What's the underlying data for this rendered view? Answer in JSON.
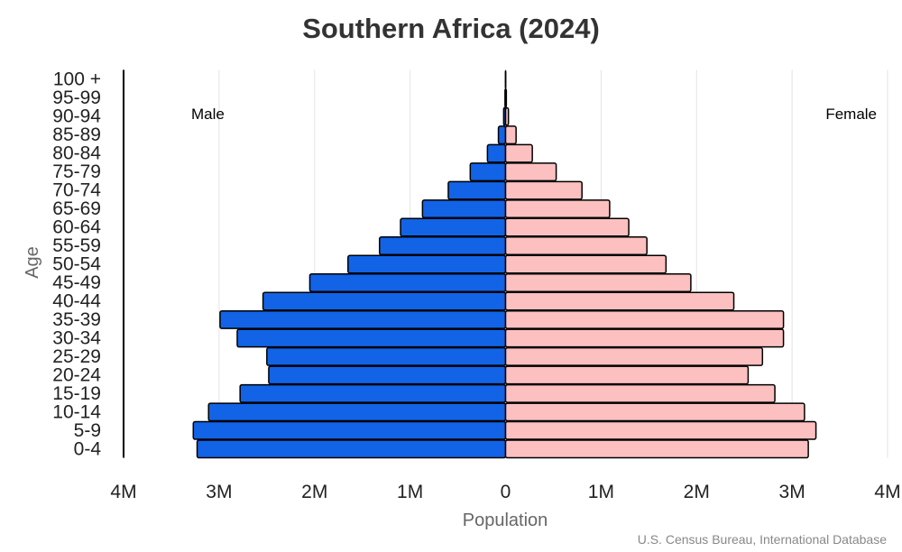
{
  "chart_data": {
    "type": "bar",
    "orientation": "horizontal",
    "subtype": "population-pyramid",
    "title": "Southern Africa (2024)",
    "xlabel": "Population",
    "ylabel": "Age",
    "source": "U.S. Census Bureau, International Database",
    "xlim": [
      -4000000,
      4000000
    ],
    "x_ticks": [
      {
        "value": -4000000,
        "label": "4M"
      },
      {
        "value": -3000000,
        "label": "3M"
      },
      {
        "value": -2000000,
        "label": "2M"
      },
      {
        "value": -1000000,
        "label": "1M"
      },
      {
        "value": 0,
        "label": "0"
      },
      {
        "value": 1000000,
        "label": "1M"
      },
      {
        "value": 2000000,
        "label": "2M"
      },
      {
        "value": 3000000,
        "label": "3M"
      },
      {
        "value": 4000000,
        "label": "4M"
      }
    ],
    "grid": "vertical",
    "categories": [
      "0-4",
      "5-9",
      "10-14",
      "15-19",
      "20-24",
      "25-29",
      "30-34",
      "35-39",
      "40-44",
      "45-49",
      "50-54",
      "55-59",
      "60-64",
      "65-69",
      "70-74",
      "75-79",
      "80-84",
      "85-89",
      "90-94",
      "95-99",
      "100 +"
    ],
    "series": [
      {
        "name": "Male",
        "side": "left",
        "color": "#1263e6",
        "values": [
          3230000,
          3270000,
          3110000,
          2780000,
          2480000,
          2500000,
          2810000,
          2990000,
          2540000,
          2050000,
          1650000,
          1320000,
          1100000,
          870000,
          600000,
          370000,
          190000,
          75000,
          20000,
          6000,
          1000
        ]
      },
      {
        "name": "Female",
        "side": "right",
        "color": "#fbc0bf",
        "values": [
          3170000,
          3250000,
          3130000,
          2820000,
          2540000,
          2690000,
          2910000,
          2910000,
          2390000,
          1940000,
          1680000,
          1480000,
          1290000,
          1090000,
          800000,
          530000,
          280000,
          110000,
          30000,
          8000,
          1500
        ]
      }
    ]
  }
}
